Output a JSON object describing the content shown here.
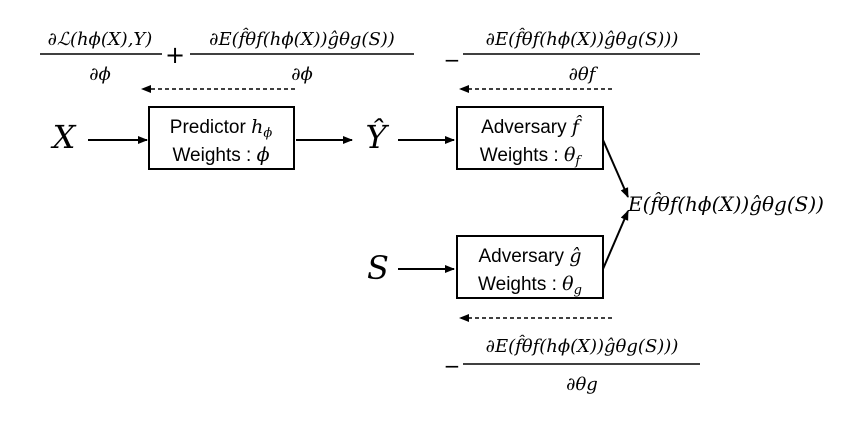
{
  "inputs": {
    "x": "X",
    "y_hat": "Ŷ",
    "s": "S"
  },
  "predictor": {
    "title": "Predictor",
    "symbol": "h",
    "symbol_sub": "ϕ",
    "weights_label": "Weights :",
    "weights_symbol": "ϕ"
  },
  "adversary_f": {
    "title": "Adversary",
    "symbol": "f̂",
    "weights_label": "Weights :",
    "weights_symbol": "θ",
    "weights_sub": "f"
  },
  "adversary_g": {
    "title": "Adversary",
    "symbol": "ĝ",
    "weights_label": "Weights :",
    "weights_symbol": "θ",
    "weights_sub": "g"
  },
  "output": {
    "expression": "E(f̂θf(hϕ(X))ĝθg(S))"
  },
  "gradients": {
    "predictor": {
      "term1_num": "∂ℒ(hϕ(X),Y)",
      "term1_den": "∂ϕ",
      "operator": "+",
      "term2_num": "∂E(f̂θf(hϕ(X))ĝθg(S))",
      "term2_den": "∂ϕ"
    },
    "adversary_f": {
      "sign": "−",
      "num": "∂E(f̂θf(hϕ(X))ĝθg(S)))",
      "den": "∂θf"
    },
    "adversary_g": {
      "sign": "−",
      "num": "∂E(f̂θf(hϕ(X))ĝθg(S)))",
      "den": "∂θg"
    }
  },
  "colors": {
    "stroke": "#000000",
    "background": "#ffffff"
  }
}
